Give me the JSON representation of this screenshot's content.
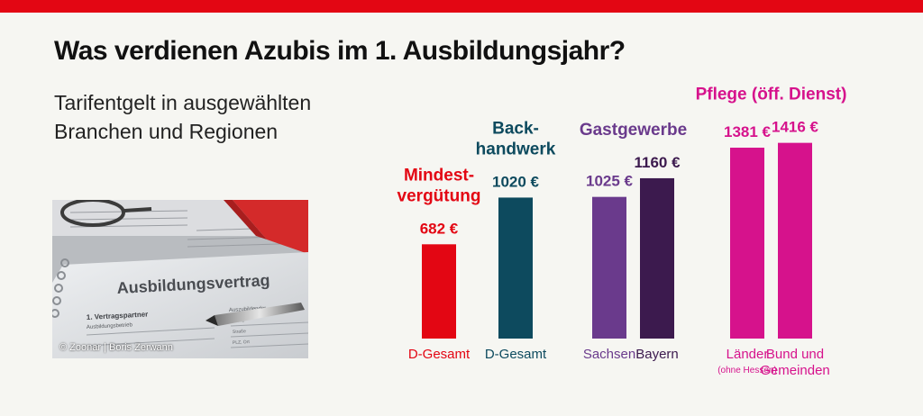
{
  "title": "Was verdienen Azubis im 1. Ausbildungsjahr?",
  "subtitle": [
    "Tarifentgelt in ausgewählten",
    "Branchen und Regionen"
  ],
  "photo": {
    "credit": "© Zoonar | Boris Zerwann",
    "document_title": "Ausbildungsvertrag",
    "section": "1. Vertragspartner",
    "field_left": "Ausbildungsbetrieb",
    "field_right": "Auszubildender",
    "field_name": "Name",
    "field_street": "Straße",
    "field_zip": "PLZ, Ort"
  },
  "colors": {
    "topbar": "#e30613",
    "mindest": "#e30613",
    "backhandwerk": "#0d4a5e",
    "gastgewerbe_sachsen": "#6a3a8c",
    "gastgewerbe_bayern": "#3c1a4e",
    "pflege": "#d6128c"
  },
  "chart_data": {
    "type": "bar",
    "unit": "€",
    "groups": [
      {
        "name": [
          "Mindest-",
          "vergütung"
        ],
        "color": "#e30613",
        "bars": [
          {
            "label": "D-Gesamt",
            "value": 682,
            "value_label": "682 €"
          }
        ]
      },
      {
        "name": [
          "Back-",
          "handwerk"
        ],
        "color": "#0d4a5e",
        "bars": [
          {
            "label": "D-Gesamt",
            "value": 1020,
            "value_label": "1020 €"
          }
        ]
      },
      {
        "name": [
          "Gastgewerbe"
        ],
        "color": "#6a3a8c",
        "bars": [
          {
            "label": "Sachsen",
            "value": 1025,
            "value_label": "1025 €",
            "color": "#6a3a8c"
          },
          {
            "label": "Bayern",
            "value": 1160,
            "value_label": "1160 €",
            "color": "#3c1a4e"
          }
        ]
      },
      {
        "name": [
          "Pflege (öff. Dienst)"
        ],
        "color": "#d6128c",
        "bars": [
          {
            "label": "Länder",
            "sublabel": "(ohne Hessen)",
            "value": 1381,
            "value_label": "1381 €"
          },
          {
            "label": [
              "Bund und",
              "Gemeinden"
            ],
            "value": 1416,
            "value_label": "1416 €"
          }
        ]
      }
    ]
  }
}
